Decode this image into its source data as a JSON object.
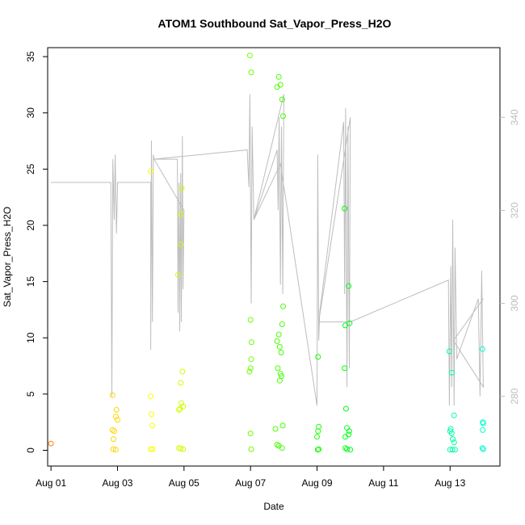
{
  "chart_data": {
    "type": "scatter",
    "title": "ATOM1 Southbound Sat_Vapor_Press_H2O",
    "xlabel": "Date",
    "ylabel": "Sat_Vapor_Press_H2O",
    "x_ticks": [
      "Aug 01",
      "Aug 03",
      "Aug 05",
      "Aug 07",
      "Aug 09",
      "Aug 11",
      "Aug 13"
    ],
    "y_ticks": [
      "0",
      "5",
      "10",
      "15",
      "20",
      "25",
      "30",
      "35"
    ],
    "y2_ticks": [
      "280",
      "300",
      "320",
      "340"
    ],
    "xlim": [
      -0.1,
      13.5
    ],
    "ylim": [
      -1.4,
      35.8
    ],
    "y2lim": [
      265,
      355
    ],
    "grid": false,
    "color_scale": "day gradient: orange (Aug 01) through yellow, green, to cyan (Aug 13)",
    "points": [
      {
        "x": 0.0,
        "y": 0.6
      },
      {
        "x": 1.85,
        "y": 4.9
      },
      {
        "x": 1.85,
        "y": 1.8
      },
      {
        "x": 1.9,
        "y": 1.7
      },
      {
        "x": 1.88,
        "y": 1.0
      },
      {
        "x": 1.87,
        "y": 0.1
      },
      {
        "x": 1.95,
        "y": 0.05
      },
      {
        "x": 1.97,
        "y": 3.6
      },
      {
        "x": 1.95,
        "y": 3.0
      },
      {
        "x": 2.0,
        "y": 2.7
      },
      {
        "x": 3.0,
        "y": 24.8
      },
      {
        "x": 3.0,
        "y": 4.8
      },
      {
        "x": 3.02,
        "y": 3.2
      },
      {
        "x": 3.05,
        "y": 2.2
      },
      {
        "x": 3.0,
        "y": 0.1
      },
      {
        "x": 3.05,
        "y": 0.1
      },
      {
        "x": 3.9,
        "y": 18.3
      },
      {
        "x": 3.82,
        "y": 15.6
      },
      {
        "x": 3.93,
        "y": 23.3
      },
      {
        "x": 3.9,
        "y": 21.0
      },
      {
        "x": 3.95,
        "y": 7.0
      },
      {
        "x": 3.9,
        "y": 6.0
      },
      {
        "x": 3.92,
        "y": 4.2
      },
      {
        "x": 3.88,
        "y": 3.7
      },
      {
        "x": 3.85,
        "y": 3.6
      },
      {
        "x": 3.97,
        "y": 3.9
      },
      {
        "x": 3.85,
        "y": 0.2
      },
      {
        "x": 3.9,
        "y": 0.15
      },
      {
        "x": 3.97,
        "y": 0.1
      },
      {
        "x": 5.98,
        "y": 35.1
      },
      {
        "x": 6.02,
        "y": 33.6
      },
      {
        "x": 6.0,
        "y": 11.6
      },
      {
        "x": 6.03,
        "y": 9.6
      },
      {
        "x": 6.02,
        "y": 8.1
      },
      {
        "x": 6.0,
        "y": 7.3
      },
      {
        "x": 5.97,
        "y": 7.0
      },
      {
        "x": 6.0,
        "y": 1.5
      },
      {
        "x": 6.02,
        "y": 0.1
      },
      {
        "x": 6.85,
        "y": 33.2
      },
      {
        "x": 6.9,
        "y": 32.5
      },
      {
        "x": 6.8,
        "y": 32.3
      },
      {
        "x": 6.95,
        "y": 31.2
      },
      {
        "x": 6.98,
        "y": 29.7
      },
      {
        "x": 6.98,
        "y": 12.8
      },
      {
        "x": 6.95,
        "y": 11.2
      },
      {
        "x": 6.85,
        "y": 10.3
      },
      {
        "x": 6.8,
        "y": 9.7
      },
      {
        "x": 6.88,
        "y": 9.2
      },
      {
        "x": 6.92,
        "y": 8.7
      },
      {
        "x": 6.82,
        "y": 7.3
      },
      {
        "x": 6.9,
        "y": 6.8
      },
      {
        "x": 6.93,
        "y": 6.6
      },
      {
        "x": 6.88,
        "y": 6.2
      },
      {
        "x": 6.97,
        "y": 2.2
      },
      {
        "x": 6.75,
        "y": 1.9
      },
      {
        "x": 6.8,
        "y": 0.5
      },
      {
        "x": 6.85,
        "y": 0.4
      },
      {
        "x": 6.95,
        "y": 0.2
      },
      {
        "x": 8.03,
        "y": 8.3
      },
      {
        "x": 8.05,
        "y": 2.1
      },
      {
        "x": 8.03,
        "y": 1.7
      },
      {
        "x": 8.0,
        "y": 1.2
      },
      {
        "x": 8.02,
        "y": 0.05
      },
      {
        "x": 8.05,
        "y": 0.1
      },
      {
        "x": 8.83,
        "y": 21.5
      },
      {
        "x": 8.95,
        "y": 14.6
      },
      {
        "x": 8.98,
        "y": 11.3
      },
      {
        "x": 8.85,
        "y": 11.1
      },
      {
        "x": 8.83,
        "y": 7.3
      },
      {
        "x": 8.87,
        "y": 3.7
      },
      {
        "x": 8.9,
        "y": 2.0
      },
      {
        "x": 8.97,
        "y": 1.7
      },
      {
        "x": 8.85,
        "y": 1.2
      },
      {
        "x": 8.95,
        "y": 1.4
      },
      {
        "x": 8.85,
        "y": 0.2
      },
      {
        "x": 8.9,
        "y": 0.1
      },
      {
        "x": 9.0,
        "y": 0.05
      },
      {
        "x": 11.98,
        "y": 8.8
      },
      {
        "x": 12.05,
        "y": 6.9
      },
      {
        "x": 12.12,
        "y": 3.1
      },
      {
        "x": 12.02,
        "y": 1.9
      },
      {
        "x": 12.0,
        "y": 1.7
      },
      {
        "x": 12.05,
        "y": 1.5
      },
      {
        "x": 12.08,
        "y": 1.0
      },
      {
        "x": 12.12,
        "y": 0.7
      },
      {
        "x": 12.0,
        "y": 0.05
      },
      {
        "x": 12.07,
        "y": 0.05
      },
      {
        "x": 12.15,
        "y": 0.05
      },
      {
        "x": 12.97,
        "y": 9.0
      },
      {
        "x": 12.98,
        "y": 2.5
      },
      {
        "x": 13.0,
        "y": 2.4
      },
      {
        "x": 12.98,
        "y": 1.8
      },
      {
        "x": 12.97,
        "y": 0.2
      },
      {
        "x": 13.0,
        "y": 0.1
      }
    ],
    "secondary_line": {
      "color": "#bdbdbd",
      "x": [
        0.0,
        1.8,
        1.83,
        1.86,
        1.9,
        1.93,
        1.97,
        2.0,
        2.0,
        3.0,
        3.0,
        3.02,
        3.05,
        3.08,
        3.1,
        3.8,
        3.82,
        3.85,
        3.87,
        3.9,
        3.92,
        3.95,
        3.97,
        4.0,
        3.1,
        5.9,
        5.95,
        5.98,
        6.02,
        6.05,
        6.1,
        6.8,
        6.83,
        6.86,
        6.9,
        6.93,
        6.97,
        7.0,
        6.1,
        6.9,
        8.0,
        8.02,
        8.05,
        8.08,
        8.8,
        8.83,
        8.86,
        8.9,
        8.93,
        8.97,
        9.0,
        8.05,
        9.0,
        11.95,
        11.98,
        12.02,
        12.05,
        12.08,
        12.12,
        12.15,
        12.2,
        12.85,
        12.9,
        12.95,
        13.0,
        12.1,
        13.0
      ],
      "y": [
        326.0,
        326.0,
        280.0,
        331.0,
        318.0,
        332.0,
        315.0,
        325.0,
        326.0,
        326.0,
        290.0,
        335.0,
        296.0,
        332.0,
        331.0,
        331.0,
        298.0,
        326.0,
        294.0,
        328.0,
        296.0,
        336.0,
        303.0,
        320.0,
        331.0,
        333.0,
        325.0,
        345.0,
        300.0,
        338.0,
        318.0,
        333.0,
        320.0,
        340.0,
        304.0,
        338.0,
        302.0,
        345.0,
        318.0,
        330.0,
        278.0,
        332.0,
        292.0,
        298.0,
        339.0,
        302.0,
        342.0,
        282.0,
        338.0,
        286.0,
        340.0,
        296.0,
        296.0,
        305.0,
        278.0,
        308.0,
        282.0,
        318.0,
        278.0,
        312.0,
        288.0,
        301.0,
        280.0,
        307.0,
        282.0,
        292.0,
        301.0
      ]
    }
  }
}
